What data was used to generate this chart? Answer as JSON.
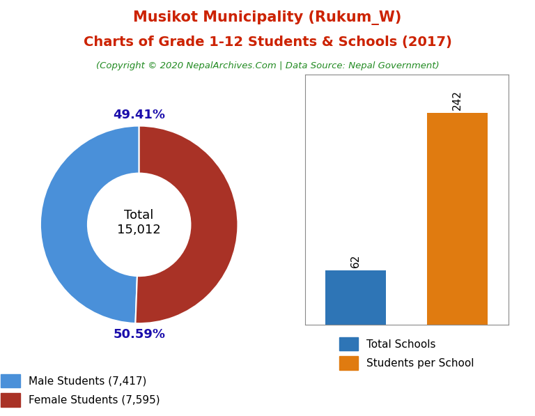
{
  "title_line1": "Musikot Municipality (Rukum_W)",
  "title_line2": "Charts of Grade 1-12 Students & Schools (2017)",
  "subtitle": "(Copyright © 2020 NepalArchives.Com | Data Source: Nepal Government)",
  "title_color": "#cc2200",
  "subtitle_color": "#228B22",
  "male_students": 7417,
  "female_students": 7595,
  "total_students": 15012,
  "male_pct": 49.41,
  "female_pct": 50.59,
  "male_color": "#4A90D9",
  "female_color": "#A93226",
  "total_schools": 62,
  "students_per_school": 242,
  "bar_color_schools": "#2E75B6",
  "bar_color_students": "#E07B10",
  "donut_label_color": "#1A0DAB",
  "center_label": "Total\n15,012",
  "legend_labels_pie": [
    "Male Students (7,417)",
    "Female Students (7,595)"
  ],
  "legend_labels_bar": [
    "Total Schools",
    "Students per School"
  ],
  "background_color": "#ffffff"
}
